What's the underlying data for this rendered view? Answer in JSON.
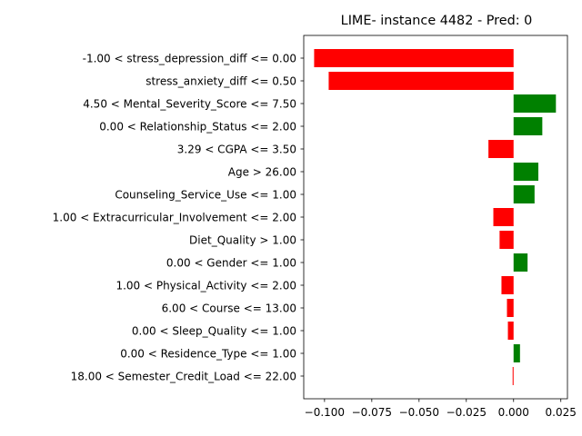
{
  "chart_data": {
    "type": "bar",
    "orientation": "horizontal",
    "title": "LIME- instance 4482 - Pred: 0",
    "xlabel": "",
    "ylabel": "",
    "xlim": [
      -0.111,
      0.0285
    ],
    "xticks": [
      -0.1,
      -0.075,
      -0.05,
      -0.025,
      0.0,
      0.025
    ],
    "xtick_labels": [
      "−0.100",
      "−0.075",
      "−0.050",
      "−0.025",
      "0.000",
      "0.025"
    ],
    "grid": false,
    "colors": {
      "positive": "#008000",
      "negative": "#ff0000"
    },
    "categories": [
      "-1.00 < stress_depression_diff <= 0.00",
      "stress_anxiety_diff <= 0.50",
      "4.50 < Mental_Severity_Score <= 7.50",
      "0.00 < Relationship_Status <= 2.00",
      "3.29 < CGPA <= 3.50",
      "Age > 26.00",
      "Counseling_Service_Use <= 1.00",
      "1.00 < Extracurricular_Involvement <= 2.00",
      "Diet_Quality > 1.00",
      "0.00 < Gender <= 1.00",
      "1.00 < Physical_Activity <= 2.00",
      "6.00 < Course <= 13.00",
      "0.00 < Sleep_Quality <= 1.00",
      "0.00 < Residence_Type <= 1.00",
      "18.00 < Semester_Credit_Load <= 22.00"
    ],
    "values": [
      -0.1055,
      -0.0978,
      0.0224,
      0.0152,
      -0.0133,
      0.0131,
      0.0111,
      -0.0107,
      -0.0074,
      0.0074,
      -0.0064,
      -0.0035,
      -0.003,
      0.0034,
      -0.0005
    ]
  }
}
